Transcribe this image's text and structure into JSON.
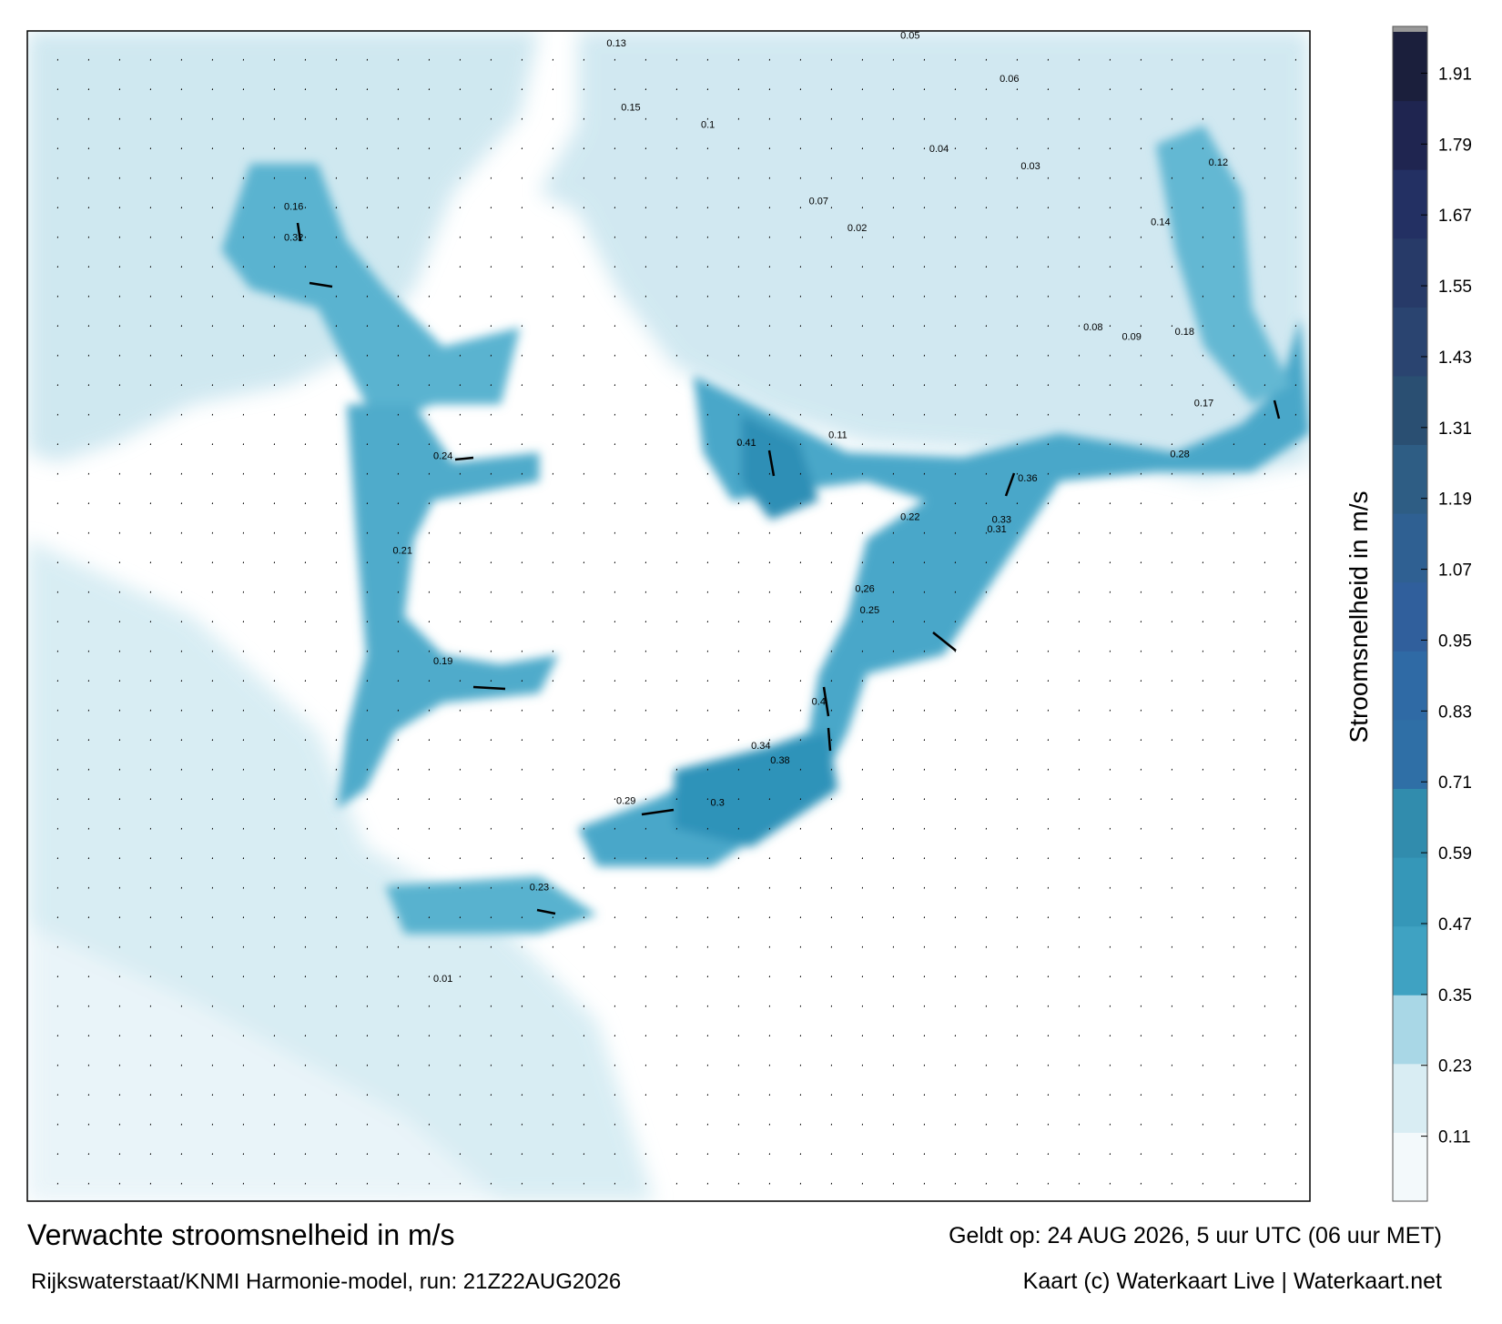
{
  "map": {
    "title": "Verwachte stroomsnelheid in m/s",
    "subtitle": "Rijkswaterstaat/KNMI Harmonie-model, run: 21Z22AUG2026",
    "valid_time": "Geldt op: 24 AUG 2026, 5 uur UTC (06 uur MET)",
    "credit": "Kaart (c) Waterkaart Live | Waterkaart.net",
    "speed_labels": [
      0.41,
      0.36,
      0.34,
      0.32,
      0.3,
      0.29,
      0.24,
      0.23,
      0.22,
      0.28,
      0.4,
      0.38,
      0.33,
      0.31,
      0.26,
      0.25,
      0.21,
      0.19,
      0.18,
      0.17,
      0.16,
      0.15,
      0.14,
      0.13,
      0.12,
      0.11,
      0.1,
      0.09,
      0.08,
      0.07,
      0.06,
      0.05,
      0.04,
      0.03,
      0.02,
      0.01
    ]
  },
  "colorbar": {
    "label": "Stroomsnelheid in m/s",
    "lim": [
      0,
      1.98
    ],
    "ticks": [
      0.11,
      0.23,
      0.35,
      0.47,
      0.59,
      0.71,
      0.83,
      0.95,
      1.07,
      1.19,
      1.31,
      1.43,
      1.55,
      1.67,
      1.79,
      1.91
    ],
    "colors": [
      "#f3f9fb",
      "#d9edf3",
      "#a9d7e6",
      "#3fa2c2",
      "#3597b8",
      "#318cad",
      "#2f6fa6",
      "#2f6aa5",
      "#305f9c",
      "#2f6092",
      "#2e5d84",
      "#2a4f72",
      "#2a4470",
      "#273a68",
      "#233063",
      "#1f2550",
      "#1b1f3c"
    ]
  }
}
